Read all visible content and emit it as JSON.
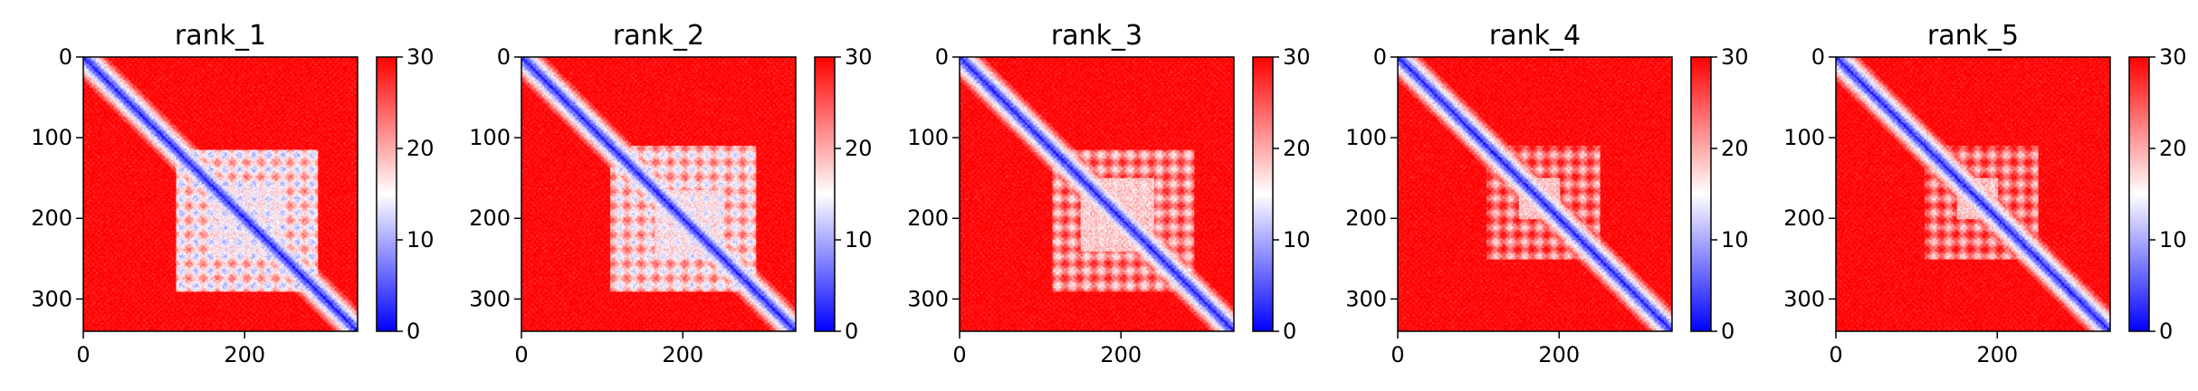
{
  "chart_data": [
    {
      "type": "heatmap",
      "title": "rank_1",
      "size": 340,
      "x_ticks": [
        0,
        200
      ],
      "y_ticks": [
        0,
        100,
        200,
        300
      ],
      "xlim": [
        0,
        340
      ],
      "ylim": [
        340,
        0
      ],
      "colorbar": {
        "range": [
          0,
          30
        ],
        "ticks": [
          0,
          10,
          20,
          30
        ],
        "colors": [
          "#0000ff",
          "#ffffff",
          "#ff0000"
        ]
      },
      "domain": [
        115,
        290
      ],
      "core": [
        160,
        245
      ],
      "domain_strength": 0.5
    },
    {
      "type": "heatmap",
      "title": "rank_2",
      "size": 340,
      "x_ticks": [
        0,
        200
      ],
      "y_ticks": [
        0,
        100,
        200,
        300
      ],
      "xlim": [
        0,
        340
      ],
      "ylim": [
        340,
        0
      ],
      "colorbar": {
        "range": [
          0,
          30
        ],
        "ticks": [
          0,
          10,
          20,
          30
        ],
        "colors": [
          "#0000ff",
          "#ffffff",
          "#ff0000"
        ]
      },
      "domain": [
        110,
        290
      ],
      "core": [
        165,
        250
      ],
      "domain_strength": 0.45
    },
    {
      "type": "heatmap",
      "title": "rank_3",
      "size": 340,
      "x_ticks": [
        0,
        200
      ],
      "y_ticks": [
        0,
        100,
        200,
        300
      ],
      "xlim": [
        0,
        340
      ],
      "ylim": [
        340,
        0
      ],
      "colorbar": {
        "range": [
          0,
          30
        ],
        "ticks": [
          0,
          10,
          20,
          30
        ],
        "colors": [
          "#0000ff",
          "#ffffff",
          "#ff0000"
        ]
      },
      "domain": [
        115,
        290
      ],
      "core": [
        150,
        240
      ],
      "domain_strength": 0.3
    },
    {
      "type": "heatmap",
      "title": "rank_4",
      "size": 340,
      "x_ticks": [
        0,
        200
      ],
      "y_ticks": [
        0,
        100,
        200,
        300
      ],
      "xlim": [
        0,
        340
      ],
      "ylim": [
        340,
        0
      ],
      "colorbar": {
        "range": [
          0,
          30
        ],
        "ticks": [
          0,
          10,
          20,
          30
        ],
        "colors": [
          "#0000ff",
          "#ffffff",
          "#ff0000"
        ]
      },
      "domain": [
        110,
        250
      ],
      "core": [
        150,
        200
      ],
      "domain_strength": 0.25
    },
    {
      "type": "heatmap",
      "title": "rank_5",
      "size": 340,
      "x_ticks": [
        0,
        200
      ],
      "y_ticks": [
        0,
        100,
        200,
        300
      ],
      "xlim": [
        0,
        340
      ],
      "ylim": [
        340,
        0
      ],
      "colorbar": {
        "range": [
          0,
          30
        ],
        "ticks": [
          0,
          10,
          20,
          30
        ],
        "colors": [
          "#0000ff",
          "#ffffff",
          "#ff0000"
        ]
      },
      "domain": [
        110,
        250
      ],
      "core": [
        150,
        200
      ],
      "domain_strength": 0.25
    }
  ]
}
